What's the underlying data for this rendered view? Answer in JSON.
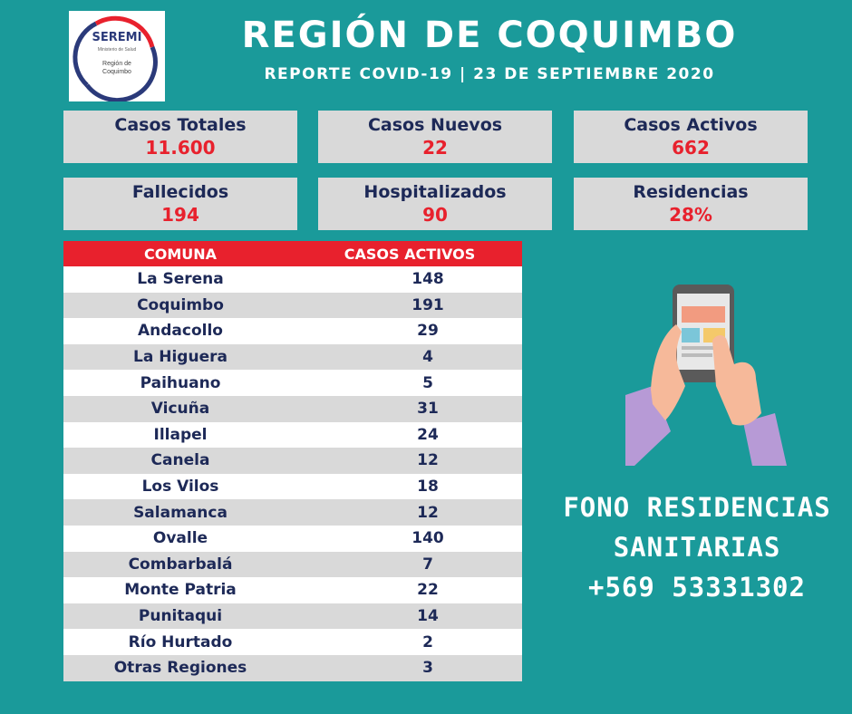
{
  "logo": {
    "name": "SEREMI",
    "ministry": "Ministerio de Salud",
    "region": "Región de\nCoquimbo"
  },
  "header": {
    "title": "REGIÓN DE COQUIMBO",
    "subtitle": "REPORTE COVID-19 | 23 DE SEPTIEMBRE 2020"
  },
  "stats": {
    "casos_totales": {
      "label": "Casos Totales",
      "value": "11.600"
    },
    "casos_nuevos": {
      "label": "Casos Nuevos",
      "value": "22"
    },
    "casos_activos": {
      "label": "Casos Activos",
      "value": "662"
    },
    "fallecidos": {
      "label": "Fallecidos",
      "value": "194"
    },
    "hospitalizados": {
      "label": "Hospitalizados",
      "value": "90"
    },
    "residencias": {
      "label": "Residencias",
      "value": "28%"
    }
  },
  "table": {
    "headers": [
      "COMUNA",
      "CASOS ACTIVOS"
    ],
    "rows": [
      {
        "comuna": "La Serena",
        "casos": "148"
      },
      {
        "comuna": "Coquimbo",
        "casos": "191"
      },
      {
        "comuna": "Andacollo",
        "casos": "29"
      },
      {
        "comuna": "La Higuera",
        "casos": "4"
      },
      {
        "comuna": "Paihuano",
        "casos": "5"
      },
      {
        "comuna": "Vicuña",
        "casos": "31"
      },
      {
        "comuna": "Illapel",
        "casos": "24"
      },
      {
        "comuna": "Canela",
        "casos": "12"
      },
      {
        "comuna": "Los Vilos",
        "casos": "18"
      },
      {
        "comuna": "Salamanca",
        "casos": "12"
      },
      {
        "comuna": "Ovalle",
        "casos": "140"
      },
      {
        "comuna": "Combarbalá",
        "casos": "7"
      },
      {
        "comuna": "Monte Patria",
        "casos": "22"
      },
      {
        "comuna": "Punitaqui",
        "casos": "14"
      },
      {
        "comuna": "Río Hurtado",
        "casos": "2"
      },
      {
        "comuna": "Otras Regiones",
        "casos": "3"
      }
    ]
  },
  "fono": {
    "line1": "FONO RESIDENCIAS",
    "line2": "SANITARIAS",
    "phone": "+569 53331302"
  },
  "colors": {
    "background": "#1a9a9a",
    "accent_red": "#e8212d",
    "navy": "#1d2957",
    "card_gray": "#d9d9d9"
  },
  "icons": [
    "seremi-logo",
    "hands-holding-phone-illustration"
  ]
}
